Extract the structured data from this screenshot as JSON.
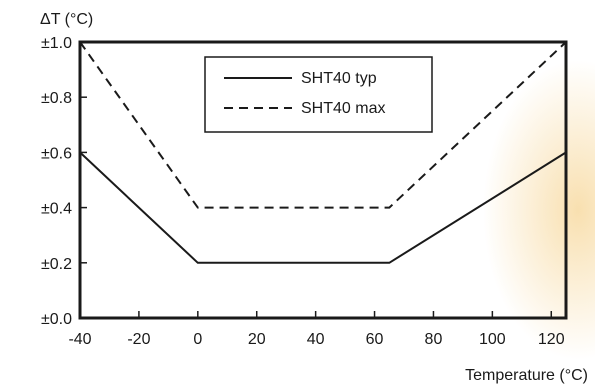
{
  "chart_data": {
    "type": "line",
    "ylabel": "ΔT (°C)",
    "xlabel": "Temperature (°C)",
    "xlim": [
      -40,
      125
    ],
    "ylim": [
      0,
      1.0
    ],
    "x_ticks": [
      -40,
      -20,
      0,
      20,
      40,
      60,
      80,
      100,
      120
    ],
    "x_tick_labels": [
      "-40",
      "-20",
      "0",
      "20",
      "40",
      "60",
      "80",
      "100",
      "120"
    ],
    "y_ticks": [
      0,
      0.2,
      0.4,
      0.6,
      0.8,
      1.0
    ],
    "y_tick_labels": [
      "±0.0",
      "±0.2",
      "±0.4",
      "±0.6",
      "±0.8",
      "±1.0"
    ],
    "grid": false,
    "legend_position": "top-center",
    "series": [
      {
        "name": "SHT40 typ",
        "line_style": "solid",
        "color": "#1a1a1a",
        "x": [
          -40,
          0,
          65,
          125
        ],
        "y": [
          0.6,
          0.2,
          0.2,
          0.6
        ]
      },
      {
        "name": "SHT40 max",
        "line_style": "dashed",
        "color": "#1a1a1a",
        "x": [
          -40,
          0,
          65,
          125
        ],
        "y": [
          1.0,
          0.4,
          0.4,
          1.0
        ]
      }
    ]
  }
}
